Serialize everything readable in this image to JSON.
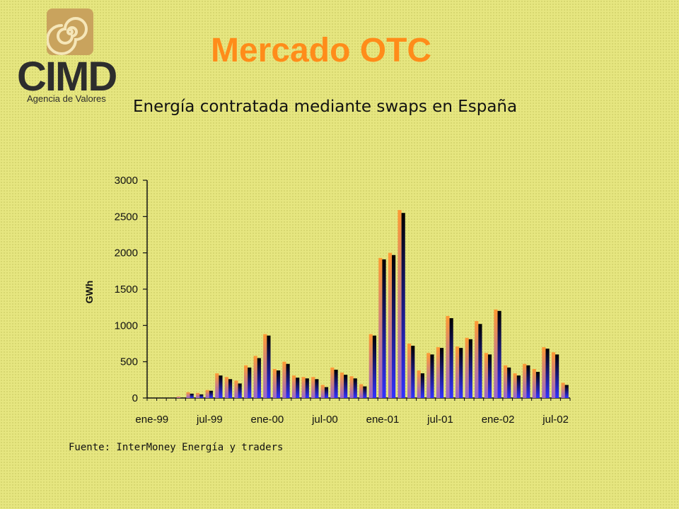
{
  "logo": {
    "name": "CIMD",
    "tagline": "Agencia de Valores",
    "icon": "spiral-icon"
  },
  "header": {
    "title": "Mercado OTC"
  },
  "colors": {
    "background": "#e6e680",
    "title": "#ff8c1a",
    "series_a_top": "#ff9933",
    "series_a_bottom": "#9966cc",
    "series_b_top": "#000000",
    "series_b_bottom": "#3333ff"
  },
  "chart_data": {
    "type": "bar",
    "title": "Energía contratada mediante swaps en España",
    "ylabel": "GWh",
    "ylim": [
      0,
      3000
    ],
    "yticks": [
      0,
      500,
      1000,
      1500,
      2000,
      2500,
      3000
    ],
    "xtick_labels": [
      "ene-99",
      "jul-99",
      "ene-00",
      "jul-00",
      "ene-01",
      "jul-01",
      "ene-02",
      "jul-02"
    ],
    "categories": [
      "ene-99",
      "feb-99",
      "mar-99",
      "abr-99",
      "may-99",
      "jun-99",
      "jul-99",
      "ago-99",
      "sep-99",
      "oct-99",
      "nov-99",
      "dic-99",
      "ene-00",
      "feb-00",
      "mar-00",
      "abr-00",
      "may-00",
      "jun-00",
      "jul-00",
      "ago-00",
      "sep-00",
      "oct-00",
      "nov-00",
      "dic-00",
      "ene-01",
      "feb-01",
      "mar-01",
      "abr-01",
      "may-01",
      "jun-01",
      "jul-01",
      "ago-01",
      "sep-01",
      "oct-01",
      "nov-01",
      "dic-01",
      "ene-02",
      "feb-02",
      "mar-02",
      "abr-02",
      "may-02",
      "jun-02",
      "jul-02",
      "ago-02"
    ],
    "series": [
      {
        "values": [
          0,
          0,
          0,
          20,
          80,
          70,
          110,
          340,
          290,
          240,
          450,
          580,
          880,
          400,
          500,
          310,
          290,
          290,
          180,
          420,
          350,
          300,
          190,
          880,
          1930,
          2000,
          2590,
          750,
          380,
          620,
          700,
          1130,
          710,
          830,
          1060,
          620,
          1220,
          450,
          340,
          470,
          400,
          700,
          630,
          210
        ]
      },
      {
        "values": [
          0,
          0,
          0,
          0,
          60,
          50,
          100,
          310,
          260,
          200,
          420,
          550,
          860,
          380,
          470,
          280,
          270,
          260,
          150,
          390,
          320,
          270,
          160,
          860,
          1910,
          1970,
          2550,
          720,
          340,
          600,
          690,
          1100,
          690,
          810,
          1020,
          600,
          1200,
          420,
          310,
          450,
          360,
          680,
          600,
          180
        ]
      }
    ]
  },
  "footer": {
    "source": "Fuente: InterMoney Energía y traders"
  }
}
